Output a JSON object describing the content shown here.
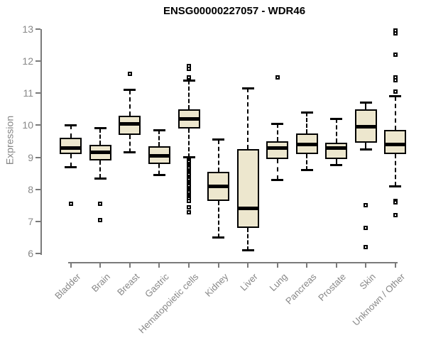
{
  "title": "ENSG00000227057 - WDR46",
  "colors": {
    "box_fill": "#EDE7CE",
    "box_line": "#000000",
    "axis": "#7a7a7a",
    "tick_text": "#878787",
    "title_text": "#000000",
    "background": "#ffffff"
  },
  "chart_data": {
    "type": "boxplot",
    "title": "ENSG00000227057 - WDR46",
    "xlabel": "",
    "ylabel": "Expression",
    "ylim": [
      6,
      13
    ],
    "yticks": [
      6,
      7,
      8,
      9,
      10,
      11,
      12,
      13
    ],
    "grid": false,
    "categories": [
      "Bladder",
      "Brain",
      "Breast",
      "Gastric",
      "Hematopoietic cells",
      "Kidney",
      "Liver",
      "Lung",
      "Pancreas",
      "Prostate",
      "Skin",
      "Unknown / Other"
    ],
    "series": [
      {
        "name": "Bladder",
        "whisker_low": 8.7,
        "q1": 9.1,
        "median": 9.3,
        "q3": 9.6,
        "whisker_high": 10.0,
        "outliers": [
          7.55
        ]
      },
      {
        "name": "Brain",
        "whisker_low": 8.35,
        "q1": 8.9,
        "median": 9.15,
        "q3": 9.4,
        "whisker_high": 9.9,
        "outliers": [
          7.55,
          7.05
        ]
      },
      {
        "name": "Breast",
        "whisker_low": 9.15,
        "q1": 9.7,
        "median": 10.05,
        "q3": 10.3,
        "whisker_high": 11.1,
        "outliers": [
          11.6
        ]
      },
      {
        "name": "Gastric",
        "whisker_low": 8.45,
        "q1": 8.8,
        "median": 9.05,
        "q3": 9.35,
        "whisker_high": 9.85,
        "outliers": []
      },
      {
        "name": "Hematopoietic cells",
        "whisker_low": 9.0,
        "q1": 9.9,
        "median": 10.2,
        "q3": 10.5,
        "whisker_high": 11.4,
        "outliers": [
          11.85,
          11.75,
          11.5,
          8.95,
          8.9,
          8.85,
          8.8,
          8.75,
          8.7,
          8.65,
          8.6,
          8.55,
          8.5,
          8.45,
          8.4,
          8.35,
          8.3,
          8.25,
          8.2,
          8.15,
          8.1,
          8.05,
          8.0,
          7.95,
          7.9,
          7.85,
          7.8,
          7.75,
          7.7,
          7.65,
          7.45,
          7.3
        ]
      },
      {
        "name": "Kidney",
        "whisker_low": 6.5,
        "q1": 7.65,
        "median": 8.1,
        "q3": 8.55,
        "whisker_high": 9.55,
        "outliers": []
      },
      {
        "name": "Liver",
        "whisker_low": 6.1,
        "q1": 6.8,
        "median": 7.4,
        "q3": 9.25,
        "whisker_high": 11.15,
        "outliers": []
      },
      {
        "name": "Lung",
        "whisker_low": 8.3,
        "q1": 8.95,
        "median": 9.3,
        "q3": 9.5,
        "whisker_high": 10.05,
        "outliers": [
          11.5
        ]
      },
      {
        "name": "Pancreas",
        "whisker_low": 8.6,
        "q1": 9.1,
        "median": 9.4,
        "q3": 9.75,
        "whisker_high": 10.4,
        "outliers": []
      },
      {
        "name": "Prostate",
        "whisker_low": 8.75,
        "q1": 8.95,
        "median": 9.3,
        "q3": 9.45,
        "whisker_high": 10.2,
        "outliers": []
      },
      {
        "name": "Skin",
        "whisker_low": 9.25,
        "q1": 9.45,
        "median": 9.95,
        "q3": 10.5,
        "whisker_high": 10.7,
        "outliers": [
          7.5,
          6.8,
          6.2
        ]
      },
      {
        "name": "Unknown / Other",
        "whisker_low": 8.1,
        "q1": 9.1,
        "median": 9.4,
        "q3": 9.85,
        "whisker_high": 10.9,
        "outliers": [
          12.95,
          12.85,
          12.2,
          11.5,
          11.4,
          11.05,
          7.65,
          7.6,
          7.2
        ]
      }
    ]
  }
}
